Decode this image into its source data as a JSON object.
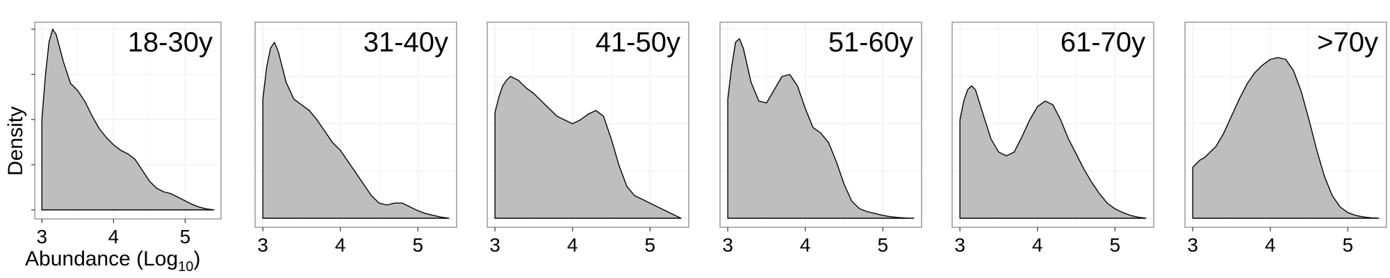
{
  "figure": {
    "ylabel": "Density",
    "xlabel_main": "Abundance (Log",
    "xlabel_sub": "10",
    "xlabel_close": ")"
  },
  "colors": {
    "fill": "#bebebe",
    "line": "#000000",
    "grid": "#ebebeb",
    "border": "#7f7f7f"
  },
  "chart_data": [
    {
      "type": "area",
      "title": "18-30y",
      "xlim": [
        2.9,
        5.5
      ],
      "xticks": [
        "3",
        "4",
        "5"
      ],
      "x": [
        3.0,
        3.05,
        3.1,
        3.15,
        3.2,
        3.3,
        3.4,
        3.5,
        3.6,
        3.7,
        3.8,
        3.9,
        4.0,
        4.1,
        4.2,
        4.3,
        4.4,
        4.5,
        4.6,
        4.7,
        4.8,
        4.9,
        5.0,
        5.1,
        5.2,
        5.3,
        5.4
      ],
      "y": [
        0.5,
        0.75,
        0.93,
        1.0,
        0.97,
        0.82,
        0.7,
        0.66,
        0.6,
        0.52,
        0.45,
        0.4,
        0.36,
        0.33,
        0.31,
        0.28,
        0.22,
        0.16,
        0.12,
        0.1,
        0.09,
        0.07,
        0.05,
        0.03,
        0.015,
        0.005,
        0.0
      ]
    },
    {
      "type": "area",
      "title": "31-40y",
      "xlim": [
        2.9,
        5.5
      ],
      "xticks": [
        "3",
        "4",
        "5"
      ],
      "x": [
        3.0,
        3.05,
        3.1,
        3.15,
        3.2,
        3.3,
        3.4,
        3.5,
        3.6,
        3.7,
        3.8,
        3.9,
        4.0,
        4.1,
        4.2,
        4.3,
        4.4,
        4.5,
        4.6,
        4.7,
        4.8,
        4.9,
        5.0,
        5.1,
        5.2,
        5.3,
        5.4
      ],
      "y": [
        0.63,
        0.8,
        0.9,
        0.93,
        0.88,
        0.72,
        0.63,
        0.6,
        0.57,
        0.52,
        0.46,
        0.4,
        0.36,
        0.3,
        0.24,
        0.18,
        0.12,
        0.08,
        0.07,
        0.08,
        0.08,
        0.06,
        0.04,
        0.025,
        0.015,
        0.006,
        0.0
      ]
    },
    {
      "type": "area",
      "title": "41-50y",
      "xlim": [
        2.9,
        5.5
      ],
      "xticks": [
        "3",
        "4",
        "5"
      ],
      "x": [
        3.0,
        3.05,
        3.1,
        3.15,
        3.2,
        3.3,
        3.4,
        3.5,
        3.6,
        3.7,
        3.8,
        3.9,
        4.0,
        4.1,
        4.2,
        4.3,
        4.4,
        4.5,
        4.6,
        4.7,
        4.8,
        4.9,
        5.0,
        5.1,
        5.2,
        5.3,
        5.4
      ],
      "y": [
        0.56,
        0.64,
        0.7,
        0.73,
        0.75,
        0.73,
        0.69,
        0.66,
        0.62,
        0.58,
        0.54,
        0.52,
        0.5,
        0.52,
        0.55,
        0.57,
        0.54,
        0.42,
        0.28,
        0.17,
        0.12,
        0.1,
        0.08,
        0.06,
        0.04,
        0.02,
        0.0
      ]
    },
    {
      "type": "area",
      "title": "51-60y",
      "xlim": [
        2.9,
        5.5
      ],
      "xticks": [
        "3",
        "4",
        "5"
      ],
      "x": [
        3.0,
        3.05,
        3.1,
        3.15,
        3.2,
        3.3,
        3.4,
        3.5,
        3.6,
        3.7,
        3.8,
        3.9,
        4.0,
        4.1,
        4.2,
        4.3,
        4.4,
        4.5,
        4.6,
        4.7,
        4.8,
        4.9,
        5.0,
        5.1,
        5.2,
        5.3,
        5.4
      ],
      "y": [
        0.63,
        0.8,
        0.93,
        0.95,
        0.9,
        0.72,
        0.62,
        0.61,
        0.68,
        0.75,
        0.76,
        0.7,
        0.58,
        0.48,
        0.45,
        0.4,
        0.3,
        0.18,
        0.09,
        0.05,
        0.035,
        0.025,
        0.015,
        0.008,
        0.004,
        0.001,
        0.0
      ]
    },
    {
      "type": "area",
      "title": "61-70y",
      "xlim": [
        2.9,
        5.5
      ],
      "xticks": [
        "3",
        "4",
        "5"
      ],
      "x": [
        3.0,
        3.05,
        3.1,
        3.15,
        3.2,
        3.3,
        3.4,
        3.5,
        3.6,
        3.7,
        3.8,
        3.9,
        4.0,
        4.1,
        4.2,
        4.3,
        4.4,
        4.5,
        4.6,
        4.7,
        4.8,
        4.9,
        5.0,
        5.1,
        5.2,
        5.3,
        5.4
      ],
      "y": [
        0.52,
        0.62,
        0.68,
        0.7,
        0.68,
        0.55,
        0.42,
        0.35,
        0.33,
        0.35,
        0.43,
        0.52,
        0.59,
        0.62,
        0.6,
        0.52,
        0.42,
        0.34,
        0.26,
        0.19,
        0.13,
        0.08,
        0.05,
        0.03,
        0.015,
        0.005,
        0.0
      ]
    },
    {
      "type": "area",
      "title": ">70y",
      "xlim": [
        2.9,
        5.5
      ],
      "xticks": [
        "3",
        "4",
        "5"
      ],
      "x": [
        3.0,
        3.05,
        3.1,
        3.15,
        3.2,
        3.3,
        3.4,
        3.5,
        3.6,
        3.7,
        3.8,
        3.9,
        4.0,
        4.1,
        4.2,
        4.3,
        4.4,
        4.5,
        4.6,
        4.7,
        4.8,
        4.9,
        5.0,
        5.1,
        5.2,
        5.3,
        5.4
      ],
      "y": [
        0.27,
        0.29,
        0.31,
        0.32,
        0.34,
        0.38,
        0.45,
        0.54,
        0.63,
        0.71,
        0.77,
        0.81,
        0.84,
        0.85,
        0.84,
        0.78,
        0.67,
        0.52,
        0.36,
        0.22,
        0.12,
        0.06,
        0.03,
        0.015,
        0.007,
        0.002,
        0.0
      ]
    }
  ]
}
